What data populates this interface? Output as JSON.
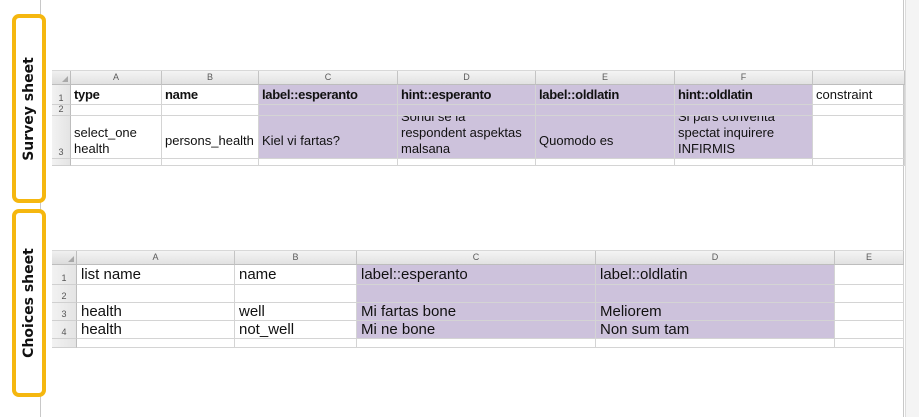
{
  "labels": {
    "survey_sheet": "Survey sheet",
    "choices_sheet": "Choices sheet"
  },
  "colors": {
    "badge_border": "#f5b70f",
    "localized_column_fill": "#cdc2dc"
  },
  "survey": {
    "columns": [
      "A",
      "B",
      "C",
      "D",
      "E",
      "F",
      ""
    ],
    "rows": [
      {
        "num": "1",
        "cells": [
          "type",
          "name",
          "label::esperanto",
          "hint::esperanto",
          "label::oldlatin",
          "hint::oldlatin",
          "constraint"
        ]
      },
      {
        "num": "2",
        "cells": [
          "",
          "",
          "",
          "",
          "",
          "",
          ""
        ]
      },
      {
        "num": "3",
        "cells": [
          "select_one health",
          "persons_health",
          "Kiel vi fartas?",
          "Sondi se la respondent aspektas malsana",
          "Quomodo es",
          "Si pars conventa spectat inquirere INFIRMIS",
          ""
        ]
      }
    ]
  },
  "choices": {
    "columns": [
      "A",
      "B",
      "C",
      "D",
      "E"
    ],
    "rows": [
      {
        "num": "1",
        "cells": [
          "list name",
          "name",
          "label::esperanto",
          "label::oldlatin",
          ""
        ]
      },
      {
        "num": "2",
        "cells": [
          "",
          "",
          "",
          "",
          ""
        ]
      },
      {
        "num": "3",
        "cells": [
          "health",
          "well",
          "Mi fartas bone",
          "Meliorem",
          ""
        ]
      },
      {
        "num": "4",
        "cells": [
          "health",
          "not_well",
          "Mi ne bone",
          "Non sum tam",
          ""
        ]
      }
    ]
  }
}
